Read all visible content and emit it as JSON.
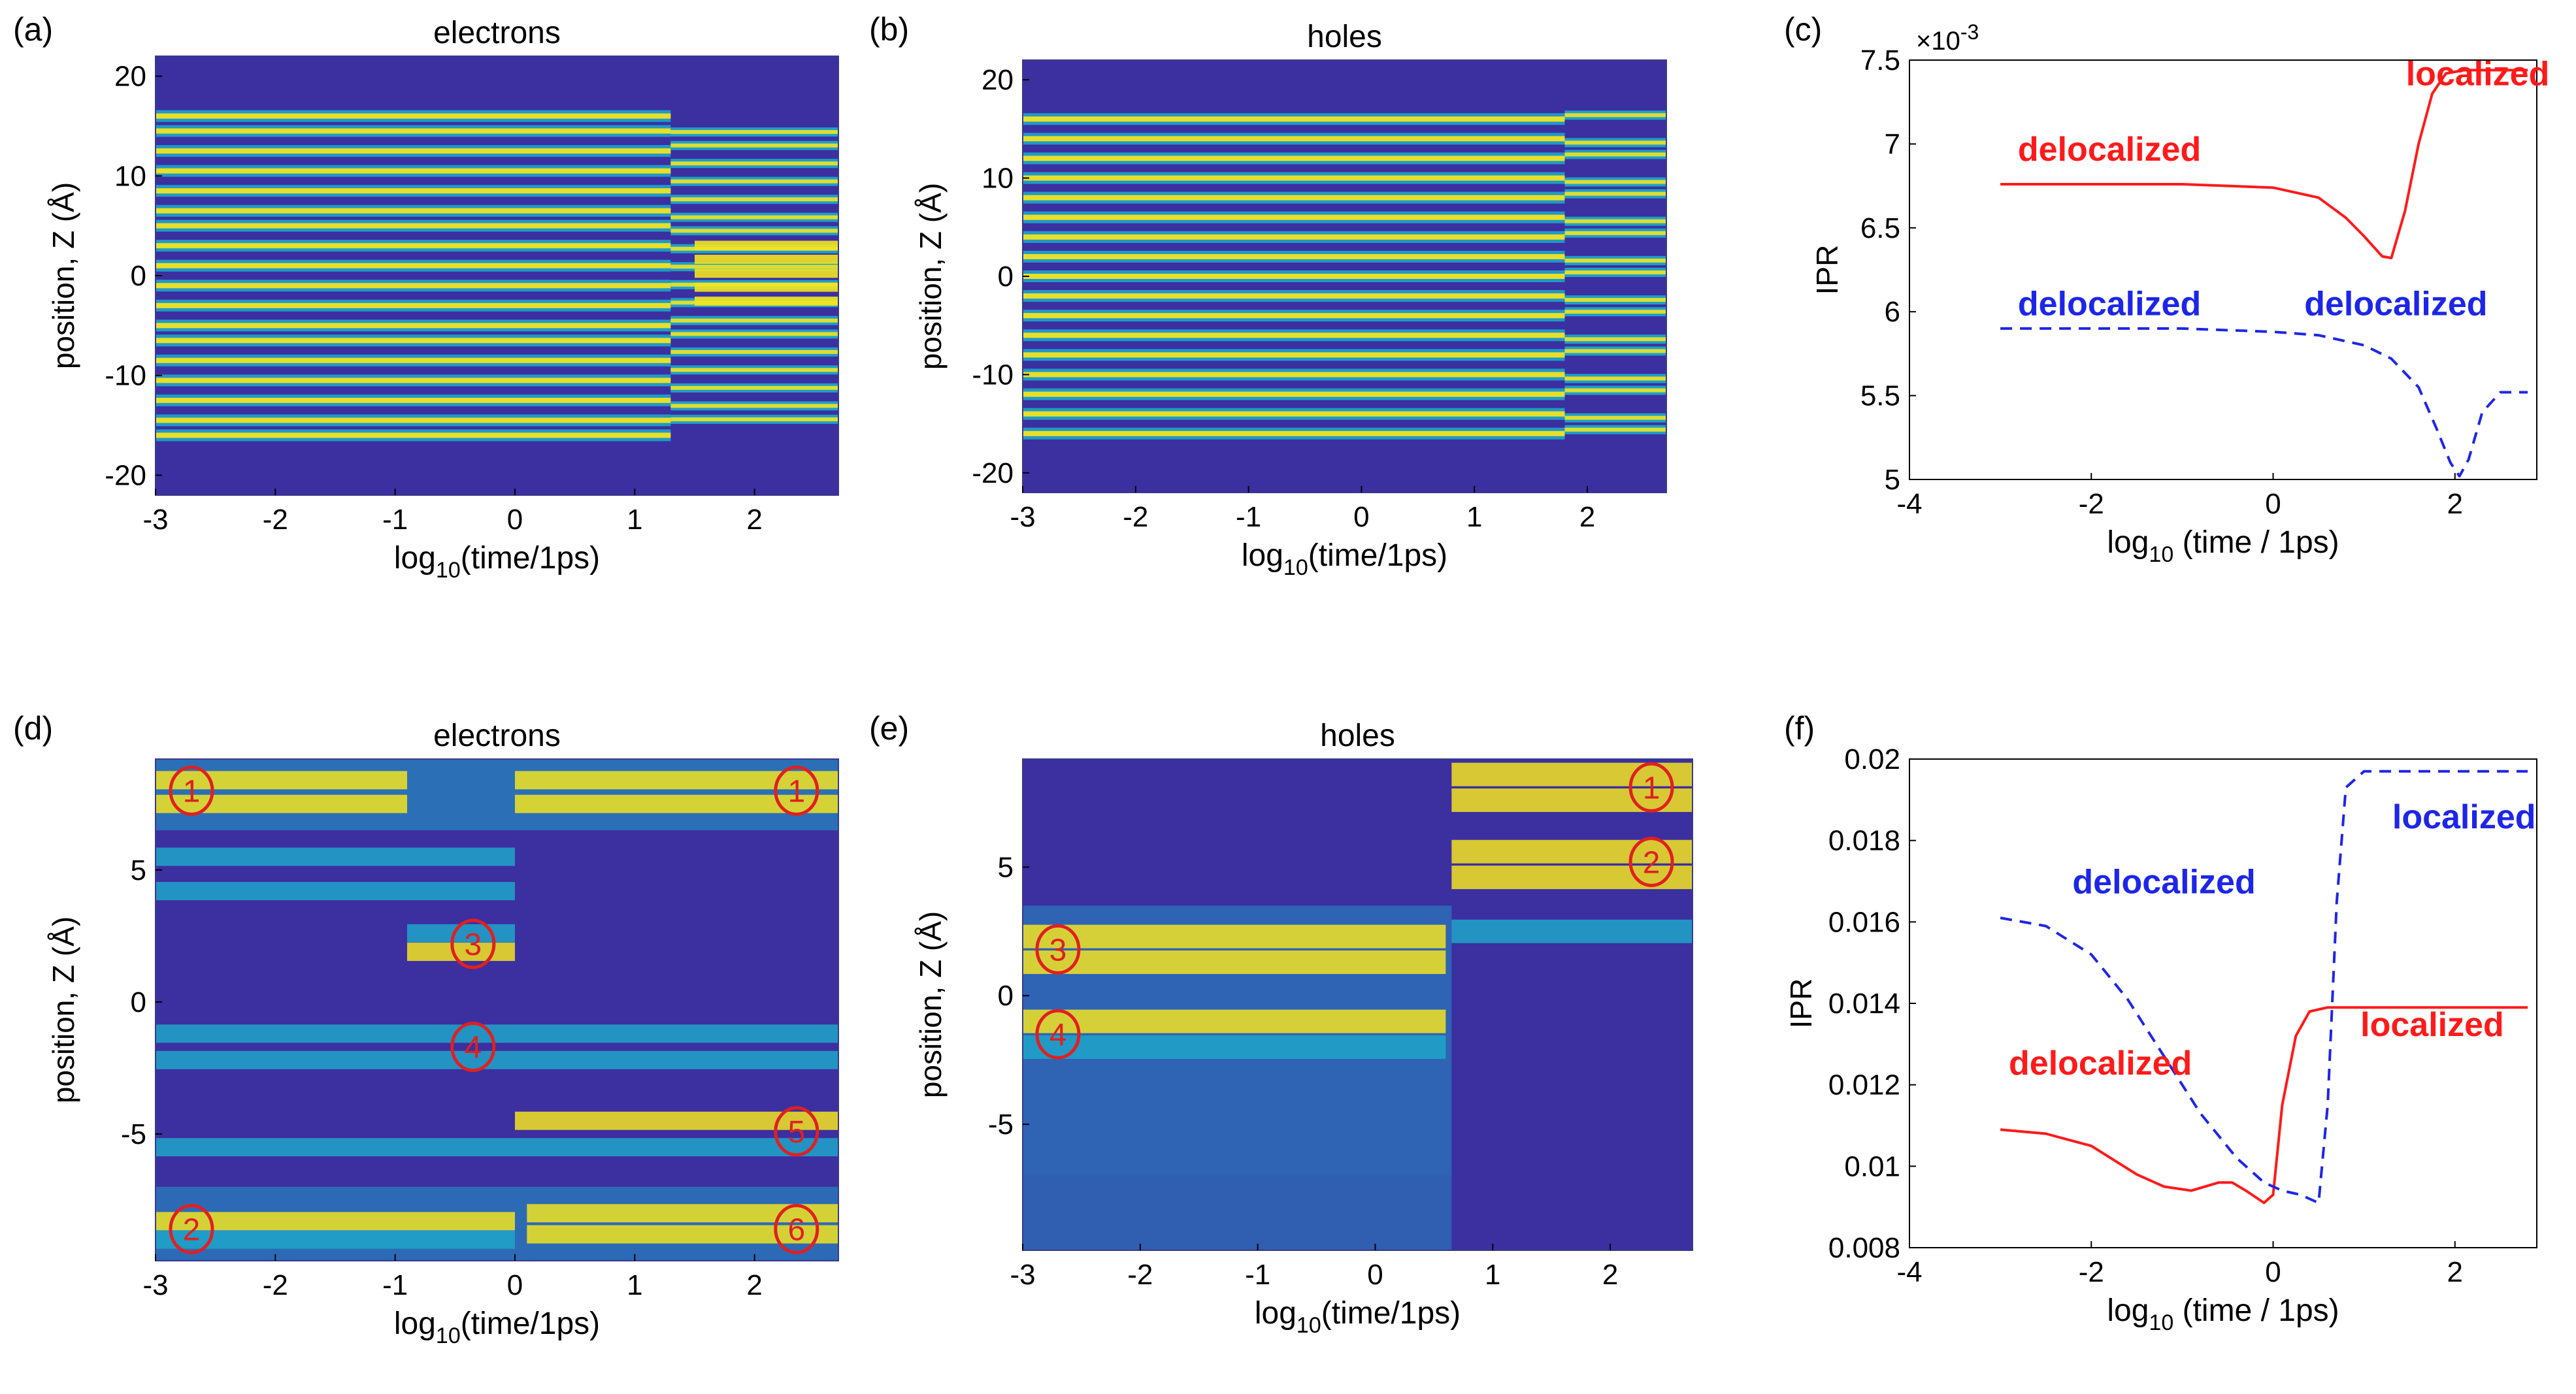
{
  "colors": {
    "background": "#ffffff",
    "axis": "#000000",
    "red": "#ff1a1a",
    "blue": "#1d26e8",
    "map_low": "#3c2fa0",
    "map_mid": "#1ea5c9",
    "map_high": "#f2e321",
    "circle": "#e02020"
  },
  "chart_data": [
    {
      "id": "a",
      "panel_label": "(a)",
      "type": "heatmap",
      "title": "electrons",
      "xlabel_main": "log",
      "xlabel_sub": "10",
      "xlabel_tail": "(time/1ps)",
      "ylabel": "position, Z (Å)",
      "xlim": [
        -3,
        2.7
      ],
      "ylim": [
        -22,
        22
      ],
      "xticks": [
        -3,
        -2,
        -1,
        0,
        1,
        2
      ],
      "yticks": [
        -20,
        -10,
        0,
        10,
        20
      ],
      "stripe_centers": [
        -16,
        -14.5,
        -12.5,
        -10.5,
        -8.5,
        -6.5,
        -5,
        -3,
        -1,
        1,
        3,
        5,
        6.5,
        8.5,
        10.5,
        12.5,
        14.5,
        16
      ],
      "transition_time": 1.3,
      "late_bright_band": [
        -3.5,
        3.5
      ]
    },
    {
      "id": "b",
      "panel_label": "(b)",
      "type": "heatmap",
      "title": "holes",
      "xlabel_main": "log",
      "xlabel_sub": "10",
      "xlabel_tail": "(time/1ps)",
      "ylabel": "position, Z (Å)",
      "xlim": [
        -3,
        2.7
      ],
      "ylim": [
        -22,
        22
      ],
      "xticks": [
        -3,
        -2,
        -1,
        0,
        1,
        2
      ],
      "yticks": [
        -20,
        -10,
        0,
        10,
        20
      ],
      "stripe_centers": [
        -16,
        -14,
        -12,
        -10,
        -8,
        -6,
        -4,
        -2,
        0,
        2,
        4,
        6,
        8,
        10,
        12,
        14,
        16
      ],
      "transition_time": 1.8
    },
    {
      "id": "c",
      "panel_label": "(c)",
      "type": "line",
      "ylabel": "IPR",
      "multiplier": "×10",
      "multiplier_exp": "-3",
      "xlabel_main": "log",
      "xlabel_sub": "10",
      "xlabel_tail": " (time / 1ps)",
      "xlim": [
        -4,
        2.9
      ],
      "ylim": [
        5,
        7.5
      ],
      "xticks": [
        -4,
        -2,
        0,
        2
      ],
      "yticks": [
        5,
        5.5,
        6,
        6.5,
        7,
        7.5
      ],
      "ytick_labels": [
        "5",
        "5.5",
        "6",
        "6.5",
        "7",
        "7.5"
      ],
      "series": [
        {
          "name": "electrons",
          "color": "red",
          "dash": "solid",
          "x": [
            -3,
            -2,
            -1,
            0,
            0.5,
            0.8,
            1.0,
            1.2,
            1.3,
            1.45,
            1.6,
            1.75,
            1.9,
            2.1,
            2.5,
            2.8
          ],
          "y": [
            6.76,
            6.76,
            6.76,
            6.74,
            6.68,
            6.56,
            6.45,
            6.33,
            6.32,
            6.6,
            7.0,
            7.3,
            7.42,
            7.44,
            7.44,
            7.44
          ]
        },
        {
          "name": "holes",
          "color": "blue",
          "dash": "dashed",
          "x": [
            -3,
            -2,
            -1,
            0,
            0.5,
            1.0,
            1.3,
            1.6,
            1.8,
            1.95,
            2.05,
            2.15,
            2.3,
            2.5,
            2.8
          ],
          "y": [
            5.9,
            5.9,
            5.9,
            5.88,
            5.86,
            5.8,
            5.72,
            5.55,
            5.3,
            5.1,
            5.02,
            5.12,
            5.4,
            5.52,
            5.52
          ]
        }
      ],
      "annotations": [
        {
          "text": "localized",
          "color": "red"
        },
        {
          "text": "delocalized",
          "color": "red"
        },
        {
          "text": "delocalized",
          "color": "blue"
        },
        {
          "text": "delocalized",
          "color": "blue"
        }
      ]
    },
    {
      "id": "d",
      "panel_label": "(d)",
      "type": "heatmap",
      "title": "electrons",
      "xlabel_main": "log",
      "xlabel_sub": "10",
      "xlabel_tail": "(time/1ps)",
      "ylabel": "position, Z (Å)",
      "xlim": [
        -3,
        2.7
      ],
      "ylim": [
        -9.8,
        9.2
      ],
      "xticks": [
        -3,
        -2,
        -1,
        0,
        1,
        2
      ],
      "yticks": [
        -5,
        0,
        5
      ],
      "state_labels": [
        "1",
        "1",
        "3",
        "4",
        "5",
        "2",
        "6"
      ]
    },
    {
      "id": "e",
      "panel_label": "(e)",
      "type": "heatmap",
      "title": "holes",
      "xlabel_main": "log",
      "xlabel_sub": "10",
      "xlabel_tail": "(time/1ps)",
      "ylabel": "position, Z (Å)",
      "xlim": [
        -3,
        2.7
      ],
      "ylim": [
        -9.9,
        9.2
      ],
      "xticks": [
        -3,
        -2,
        -1,
        0,
        1,
        2
      ],
      "yticks": [
        -5,
        0,
        5
      ],
      "state_labels": [
        "1",
        "2",
        "3",
        "4"
      ]
    },
    {
      "id": "f",
      "panel_label": "(f)",
      "type": "line",
      "ylabel": "IPR",
      "xlabel_main": "log",
      "xlabel_sub": "10",
      "xlabel_tail": " (time / 1ps)",
      "xlim": [
        -4,
        2.9
      ],
      "ylim": [
        0.008,
        0.02
      ],
      "xticks": [
        -4,
        -2,
        0,
        2
      ],
      "yticks": [
        0.008,
        0.01,
        0.012,
        0.014,
        0.016,
        0.018,
        0.02
      ],
      "ytick_labels": [
        "0.008",
        "0.01",
        "0.012",
        "0.014",
        "0.016",
        "0.018",
        "0.02"
      ],
      "series": [
        {
          "name": "electrons",
          "color": "red",
          "dash": "solid",
          "x": [
            -3,
            -2.5,
            -2,
            -1.5,
            -1.2,
            -0.9,
            -0.6,
            -0.45,
            -0.3,
            -0.1,
            0.0,
            0.1,
            0.25,
            0.4,
            0.6,
            1.0,
            2.0,
            2.8
          ],
          "y": [
            0.0109,
            0.0108,
            0.0105,
            0.0098,
            0.0095,
            0.0094,
            0.0096,
            0.0096,
            0.0094,
            0.0091,
            0.0093,
            0.0115,
            0.0132,
            0.0138,
            0.0139,
            0.0139,
            0.0139,
            0.0139
          ]
        },
        {
          "name": "holes",
          "color": "blue",
          "dash": "dashed",
          "x": [
            -3,
            -2.5,
            -2,
            -1.6,
            -1.2,
            -0.8,
            -0.4,
            -0.1,
            0.1,
            0.3,
            0.5,
            0.6,
            0.7,
            0.8,
            1.0,
            2.0,
            2.8
          ],
          "y": [
            0.0161,
            0.0159,
            0.0152,
            0.0141,
            0.0127,
            0.0113,
            0.0102,
            0.0096,
            0.0094,
            0.0093,
            0.0091,
            0.0115,
            0.0165,
            0.0193,
            0.0197,
            0.0197,
            0.0197
          ]
        }
      ],
      "annotations": [
        {
          "text": "delocalized",
          "color": "blue"
        },
        {
          "text": "localized",
          "color": "blue"
        },
        {
          "text": "delocalized",
          "color": "red"
        },
        {
          "text": "localized",
          "color": "red"
        }
      ]
    }
  ]
}
